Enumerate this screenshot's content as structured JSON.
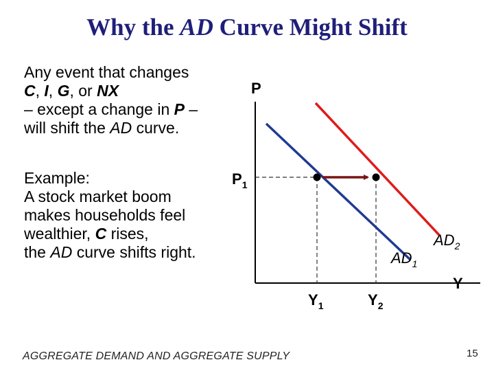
{
  "title": {
    "prefix": "Why the ",
    "italic": "AD",
    "suffix": " Curve Might Shift"
  },
  "paragraph1": {
    "line1": "Any event that changes",
    "line2": {
      "c": "C",
      "sep1": ", ",
      "i": "I",
      "sep2": ", ",
      "g": "G",
      "sep3": ", or ",
      "nx": "NX"
    },
    "line3": {
      "prefix": "– except a change in ",
      "p": "P",
      "suffix": " –"
    },
    "line4": {
      "prefix": "will shift the ",
      "ad": "AD",
      "suffix": " curve."
    }
  },
  "paragraph2": {
    "line1": "Example:",
    "line2": "A stock market boom",
    "line3": "makes households feel",
    "line4": {
      "prefix": "wealthier, ",
      "c": "C",
      "suffix": " rises,"
    },
    "line5": {
      "prefix": "the ",
      "ad": "AD",
      "suffix": " curve shifts right."
    }
  },
  "diagram": {
    "y_axis_label": "P",
    "x_axis_label": "Y",
    "price_label": {
      "main": "P",
      "sub": "1"
    },
    "y1_label": {
      "main": "Y",
      "sub": "1"
    },
    "y2_label": {
      "main": "Y",
      "sub": "2"
    },
    "ad1_label": {
      "main": "AD",
      "sub": "1"
    },
    "ad2_label": {
      "main": "AD",
      "sub": "2"
    },
    "colors": {
      "ad1": "#1f3a93",
      "ad2": "#e01b1b",
      "arrow": "#7a1414",
      "axis": "#000000",
      "guide": "#333333"
    }
  },
  "footer": "AGGREGATE DEMAND AND AGGREGATE SUPPLY",
  "page_number": "15"
}
